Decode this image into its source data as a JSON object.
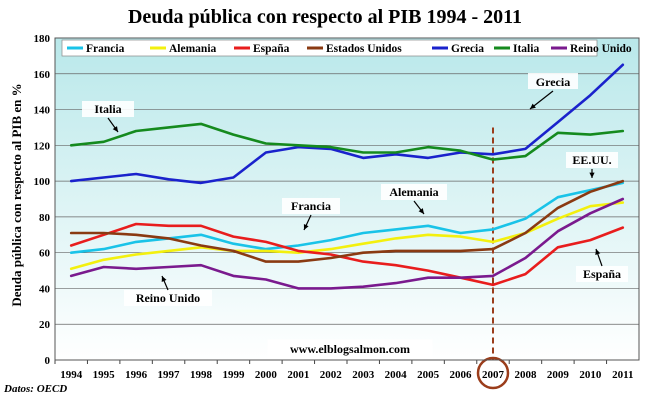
{
  "chart_data": {
    "type": "line",
    "title": "Deuda pública con respecto al PIB  1994 - 2011",
    "ylabel": "Deuda pública con respecto al PIB en %",
    "xlabel": "",
    "x": [
      "1994",
      "1995",
      "1996",
      "1997",
      "1998",
      "1999",
      "2000",
      "2001",
      "2002",
      "2003",
      "2004",
      "2005",
      "2006",
      "2007",
      "2008",
      "2009",
      "2010",
      "2011"
    ],
    "ylim": [
      0,
      180
    ],
    "yticks": [
      0,
      20,
      40,
      60,
      80,
      100,
      120,
      140,
      160,
      180
    ],
    "grid": true,
    "legend_position": "top",
    "series": [
      {
        "name": "Francia",
        "color": "#19c3e8",
        "values": [
          60,
          62,
          66,
          68,
          70,
          65,
          62,
          64,
          67,
          71,
          73,
          75,
          71,
          73,
          79,
          91,
          95,
          99
        ]
      },
      {
        "name": "Alemania",
        "color": "#f3f00e",
        "values": [
          51,
          56,
          59,
          61,
          63,
          61,
          61,
          60,
          62,
          65,
          68,
          70,
          69,
          66,
          71,
          79,
          86,
          88
        ]
      },
      {
        "name": "España",
        "color": "#e81d1d",
        "values": [
          64,
          70,
          76,
          75,
          75,
          69,
          66,
          61,
          59,
          55,
          53,
          50,
          46,
          42,
          48,
          63,
          67,
          74
        ]
      },
      {
        "name": "Estados Unidos",
        "color": "#8a3a12",
        "values": [
          71,
          71,
          70,
          68,
          64,
          61,
          55,
          55,
          57,
          60,
          61,
          61,
          61,
          62,
          71,
          85,
          94,
          100
        ]
      },
      {
        "name": "Grecia",
        "color": "#1a22cc",
        "values": [
          100,
          102,
          104,
          101,
          99,
          102,
          116,
          119,
          118,
          113,
          115,
          113,
          116,
          115,
          118,
          133,
          148,
          165
        ]
      },
      {
        "name": "Italia",
        "color": "#158a1e",
        "values": [
          120,
          122,
          128,
          130,
          132,
          126,
          121,
          120,
          119,
          116,
          116,
          119,
          117,
          112,
          114,
          127,
          126,
          128
        ]
      },
      {
        "name": "Reino Unido",
        "color": "#7a1a8e",
        "values": [
          47,
          52,
          51,
          52,
          53,
          47,
          45,
          40,
          40,
          41,
          43,
          46,
          46,
          47,
          57,
          72,
          82,
          90
        ]
      }
    ],
    "annotations": [
      {
        "label": "Italia",
        "series": "Italia"
      },
      {
        "label": "Grecia",
        "series": "Grecia"
      },
      {
        "label": "EE.UU.",
        "series": "Estados Unidos"
      },
      {
        "label": "Francia",
        "series": "Francia"
      },
      {
        "label": "Alemania",
        "series": "Alemania"
      },
      {
        "label": "España",
        "series": "España"
      },
      {
        "label": "Reino Unido",
        "series": "Reino Unido"
      }
    ],
    "marker_year": "2007",
    "marker_color": "#9b3d1b"
  },
  "watermark": "www.elblogsalmon.com",
  "source": "Datos: OECD",
  "colors": {
    "plot_bg_top": "#b9e8ea",
    "plot_bg_bottom": "#ffffff",
    "grid": "#666666"
  }
}
